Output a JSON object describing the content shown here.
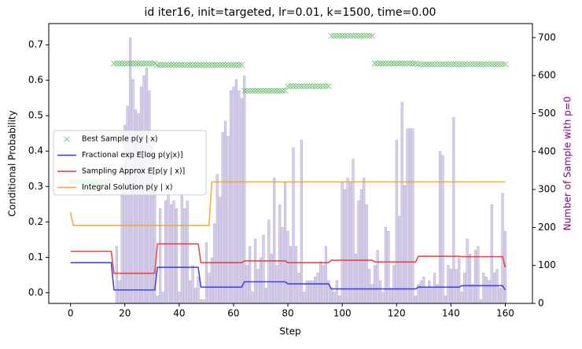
{
  "chart_data": {
    "type": "line",
    "title": "id iter16, init=targeted, lr=0.01, k=1500, time=0.00",
    "xlabel": "Step",
    "ylabel": "Conditional Probability",
    "y2label": "Number of Sample with p=0",
    "y2label_color": "#800080",
    "xlim": [
      -8,
      170
    ],
    "xticks": [
      0,
      20,
      40,
      60,
      80,
      100,
      120,
      140,
      160
    ],
    "ylim": [
      -0.03,
      0.76
    ],
    "yticks": [
      {
        "value": 0,
        "label": "0.0"
      },
      0.1,
      0.2,
      0.3,
      0.4,
      0.5,
      0.6,
      0.7
    ],
    "y2lim": [
      0,
      737
    ],
    "y2ticks": [
      0,
      100,
      200,
      300,
      400,
      500,
      600,
      700
    ],
    "legend": "upper left",
    "x": [
      0,
      1,
      2,
      3,
      4,
      5,
      6,
      7,
      8,
      9,
      10,
      11,
      12,
      13,
      14,
      15,
      16,
      17,
      18,
      19,
      20,
      21,
      22,
      23,
      24,
      25,
      26,
      27,
      28,
      29,
      30,
      31,
      32,
      33,
      34,
      35,
      36,
      37,
      38,
      39,
      40,
      41,
      42,
      43,
      44,
      45,
      46,
      47,
      48,
      49,
      50,
      51,
      52,
      53,
      54,
      55,
      56,
      57,
      58,
      59,
      60,
      61,
      62,
      63,
      64,
      65,
      66,
      67,
      68,
      69,
      70,
      71,
      72,
      73,
      74,
      75,
      76,
      77,
      78,
      79,
      80,
      81,
      82,
      83,
      84,
      85,
      86,
      87,
      88,
      89,
      90,
      91,
      92,
      93,
      94,
      95,
      96,
      97,
      98,
      99,
      100,
      101,
      102,
      103,
      104,
      105,
      106,
      107,
      108,
      109,
      110,
      111,
      112,
      113,
      114,
      115,
      116,
      117,
      118,
      119,
      120,
      121,
      122,
      123,
      124,
      125,
      126,
      127,
      128,
      129,
      130,
      131,
      132,
      133,
      134,
      135,
      136,
      137,
      138,
      139,
      140,
      141,
      142,
      143,
      144,
      145,
      146,
      147,
      148,
      149,
      150,
      151,
      152,
      153,
      154,
      155,
      156,
      157,
      158,
      159,
      160
    ],
    "bars": {
      "axis": "y2",
      "color": "#d8d0ea",
      "values": [
        0,
        0,
        0,
        0,
        0,
        0,
        0,
        0,
        0,
        0,
        0,
        0,
        0,
        0,
        0,
        0,
        0,
        150,
        60,
        300,
        470,
        520,
        700,
        590,
        510,
        500,
        570,
        600,
        620,
        560,
        430,
        290,
        20,
        250,
        30,
        270,
        300,
        260,
        270,
        250,
        30,
        290,
        250,
        270,
        60,
        100,
        40,
        70,
        10,
        10,
        160,
        80,
        120,
        210,
        340,
        280,
        450,
        480,
        440,
        560,
        570,
        590,
        560,
        540,
        600,
        100,
        150,
        30,
        170,
        90,
        120,
        180,
        40,
        220,
        130,
        330,
        100,
        260,
        200,
        320,
        190,
        150,
        410,
        150,
        80,
        430,
        30,
        60,
        60,
        60,
        70,
        80,
        110,
        100,
        150,
        60,
        40,
        30,
        60,
        20,
        320,
        300,
        330,
        320,
        380,
        130,
        270,
        300,
        330,
        260,
        90,
        50,
        100,
        140,
        60,
        30,
        200,
        190,
        40,
        100,
        430,
        230,
        530,
        310,
        460,
        460,
        460,
        20,
        50,
        60,
        70,
        40,
        60,
        40,
        80,
        50,
        400,
        390,
        20,
        100,
        90,
        490,
        90,
        120,
        30,
        80,
        170,
        130,
        50,
        140,
        150,
        10,
        80,
        70,
        60,
        260,
        80,
        90,
        40,
        290,
        190
      ]
    },
    "series": [
      {
        "name": "Best Sample p(y | x)",
        "color": "#4caf50",
        "style": "marker",
        "axis": "y2",
        "values": [
          320,
          320,
          320,
          320,
          320,
          320,
          320,
          320,
          320,
          320,
          320,
          320,
          320,
          320,
          320,
          320,
          632,
          632,
          632,
          632,
          632,
          632,
          632,
          632,
          632,
          632,
          632,
          632,
          632,
          632,
          632,
          632,
          628,
          628,
          628,
          628,
          628,
          628,
          628,
          628,
          628,
          628,
          628,
          628,
          628,
          628,
          628,
          628,
          628,
          628,
          628,
          628,
          628,
          628,
          628,
          628,
          628,
          628,
          628,
          628,
          628,
          628,
          628,
          628,
          560,
          560,
          560,
          560,
          560,
          560,
          560,
          560,
          560,
          560,
          560,
          560,
          560,
          560,
          560,
          560,
          572,
          572,
          572,
          572,
          572,
          572,
          572,
          572,
          572,
          572,
          572,
          572,
          572,
          572,
          572,
          572,
          705,
          705,
          705,
          705,
          705,
          705,
          705,
          705,
          705,
          705,
          705,
          705,
          705,
          705,
          705,
          705,
          632,
          632,
          632,
          632,
          632,
          632,
          632,
          632,
          632,
          632,
          632,
          632,
          632,
          632,
          632,
          632,
          630,
          630,
          630,
          630,
          630,
          630,
          630,
          630,
          630,
          630,
          630,
          630,
          630,
          630,
          630,
          630,
          630,
          630,
          630,
          630,
          630,
          630,
          630,
          630,
          630,
          630,
          630,
          630,
          630,
          630,
          630,
          630,
          630
        ]
      },
      {
        "name": "Fractional exp E[log p(y|x)]",
        "color": "#3333dd",
        "style": "line",
        "axis": "y",
        "values": [
          0.085,
          0.085,
          0.085,
          0.085,
          0.085,
          0.085,
          0.085,
          0.085,
          0.085,
          0.085,
          0.085,
          0.085,
          0.085,
          0.085,
          0.085,
          0.085,
          0.008,
          0.008,
          0.008,
          0.008,
          0.008,
          0.008,
          0.008,
          0.008,
          0.008,
          0.008,
          0.008,
          0.008,
          0.008,
          0.008,
          0.008,
          0.008,
          0.072,
          0.072,
          0.072,
          0.072,
          0.072,
          0.072,
          0.072,
          0.072,
          0.072,
          0.072,
          0.072,
          0.072,
          0.072,
          0.072,
          0.072,
          0.072,
          0.016,
          0.016,
          0.016,
          0.016,
          0.016,
          0.016,
          0.016,
          0.016,
          0.016,
          0.016,
          0.016,
          0.016,
          0.016,
          0.016,
          0.016,
          0.016,
          0.031,
          0.031,
          0.031,
          0.031,
          0.031,
          0.031,
          0.031,
          0.031,
          0.031,
          0.031,
          0.031,
          0.031,
          0.031,
          0.031,
          0.031,
          0.031,
          0.025,
          0.025,
          0.025,
          0.025,
          0.025,
          0.025,
          0.025,
          0.025,
          0.025,
          0.025,
          0.025,
          0.025,
          0.025,
          0.025,
          0.025,
          0.025,
          0.011,
          0.011,
          0.011,
          0.011,
          0.011,
          0.011,
          0.011,
          0.011,
          0.011,
          0.011,
          0.011,
          0.011,
          0.011,
          0.011,
          0.011,
          0.011,
          0.011,
          0.011,
          0.011,
          0.011,
          0.011,
          0.011,
          0.011,
          0.011,
          0.011,
          0.011,
          0.011,
          0.011,
          0.011,
          0.011,
          0.011,
          0.011,
          0.016,
          0.016,
          0.016,
          0.016,
          0.016,
          0.016,
          0.016,
          0.016,
          0.016,
          0.016,
          0.016,
          0.016,
          0.016,
          0.016,
          0.016,
          0.016,
          0.02,
          0.02,
          0.02,
          0.02,
          0.02,
          0.02,
          0.02,
          0.02,
          0.02,
          0.02,
          0.02,
          0.02,
          0.02,
          0.02,
          0.02,
          0.02,
          0.008
        ]
      },
      {
        "name": "Sampling Approx E[p(y | x)]",
        "color": "#ee3333",
        "style": "line",
        "axis": "y",
        "values": [
          0.117,
          0.117,
          0.117,
          0.117,
          0.117,
          0.117,
          0.117,
          0.117,
          0.117,
          0.117,
          0.117,
          0.117,
          0.117,
          0.117,
          0.117,
          0.117,
          0.055,
          0.055,
          0.055,
          0.055,
          0.055,
          0.055,
          0.055,
          0.055,
          0.055,
          0.055,
          0.055,
          0.055,
          0.055,
          0.055,
          0.055,
          0.055,
          0.138,
          0.138,
          0.138,
          0.138,
          0.138,
          0.138,
          0.138,
          0.138,
          0.138,
          0.138,
          0.138,
          0.138,
          0.138,
          0.138,
          0.138,
          0.138,
          0.085,
          0.085,
          0.085,
          0.085,
          0.085,
          0.085,
          0.085,
          0.085,
          0.085,
          0.085,
          0.085,
          0.085,
          0.085,
          0.085,
          0.085,
          0.085,
          0.09,
          0.09,
          0.09,
          0.09,
          0.09,
          0.09,
          0.09,
          0.09,
          0.09,
          0.09,
          0.09,
          0.09,
          0.09,
          0.09,
          0.09,
          0.09,
          0.085,
          0.085,
          0.085,
          0.085,
          0.085,
          0.085,
          0.085,
          0.085,
          0.085,
          0.085,
          0.085,
          0.085,
          0.085,
          0.085,
          0.085,
          0.085,
          0.092,
          0.092,
          0.092,
          0.092,
          0.092,
          0.092,
          0.092,
          0.092,
          0.092,
          0.092,
          0.092,
          0.092,
          0.092,
          0.092,
          0.092,
          0.092,
          0.087,
          0.087,
          0.087,
          0.087,
          0.087,
          0.087,
          0.087,
          0.087,
          0.087,
          0.087,
          0.087,
          0.087,
          0.087,
          0.087,
          0.087,
          0.087,
          0.103,
          0.103,
          0.103,
          0.103,
          0.103,
          0.103,
          0.103,
          0.103,
          0.103,
          0.103,
          0.103,
          0.103,
          0.103,
          0.103,
          0.103,
          0.103,
          0.102,
          0.102,
          0.102,
          0.102,
          0.102,
          0.102,
          0.102,
          0.102,
          0.102,
          0.102,
          0.102,
          0.102,
          0.102,
          0.102,
          0.102,
          0.102,
          0.072
        ]
      },
      {
        "name": "Integral Solution p(y | x)",
        "color": "#f5a623",
        "style": "line",
        "axis": "y",
        "values": [
          0.228,
          0.19,
          0.19,
          0.19,
          0.19,
          0.19,
          0.19,
          0.19,
          0.19,
          0.19,
          0.19,
          0.19,
          0.19,
          0.19,
          0.19,
          0.19,
          0.19,
          0.19,
          0.19,
          0.19,
          0.19,
          0.19,
          0.19,
          0.19,
          0.19,
          0.19,
          0.19,
          0.19,
          0.19,
          0.19,
          0.19,
          0.19,
          0.19,
          0.19,
          0.19,
          0.19,
          0.19,
          0.19,
          0.19,
          0.19,
          0.19,
          0.19,
          0.19,
          0.19,
          0.19,
          0.19,
          0.19,
          0.19,
          0.19,
          0.19,
          0.19,
          0.19,
          0.313,
          0.313,
          0.313,
          0.313,
          0.313,
          0.313,
          0.313,
          0.313,
          0.313,
          0.313,
          0.313,
          0.313,
          0.313,
          0.313,
          0.313,
          0.313,
          0.313,
          0.313,
          0.313,
          0.313,
          0.313,
          0.313,
          0.313,
          0.313,
          0.313,
          0.313,
          0.313,
          0.313,
          0.313,
          0.313,
          0.313,
          0.313,
          0.313,
          0.313,
          0.313,
          0.313,
          0.313,
          0.313,
          0.313,
          0.313,
          0.313,
          0.313,
          0.313,
          0.313,
          0.313,
          0.313,
          0.313,
          0.313,
          0.313,
          0.313,
          0.313,
          0.313,
          0.313,
          0.313,
          0.313,
          0.313,
          0.313,
          0.313,
          0.313,
          0.313,
          0.313,
          0.313,
          0.313,
          0.313,
          0.313,
          0.313,
          0.313,
          0.313,
          0.313,
          0.313,
          0.313,
          0.313,
          0.313,
          0.313,
          0.313,
          0.313,
          0.313,
          0.313,
          0.313,
          0.313,
          0.313,
          0.313,
          0.313,
          0.313,
          0.313,
          0.313,
          0.313,
          0.313,
          0.313,
          0.313,
          0.313,
          0.313,
          0.313,
          0.313,
          0.313,
          0.313,
          0.313,
          0.313,
          0.313,
          0.313,
          0.313,
          0.313,
          0.313,
          0.313,
          0.313,
          0.313,
          0.313,
          0.313,
          0.313
        ]
      }
    ]
  }
}
